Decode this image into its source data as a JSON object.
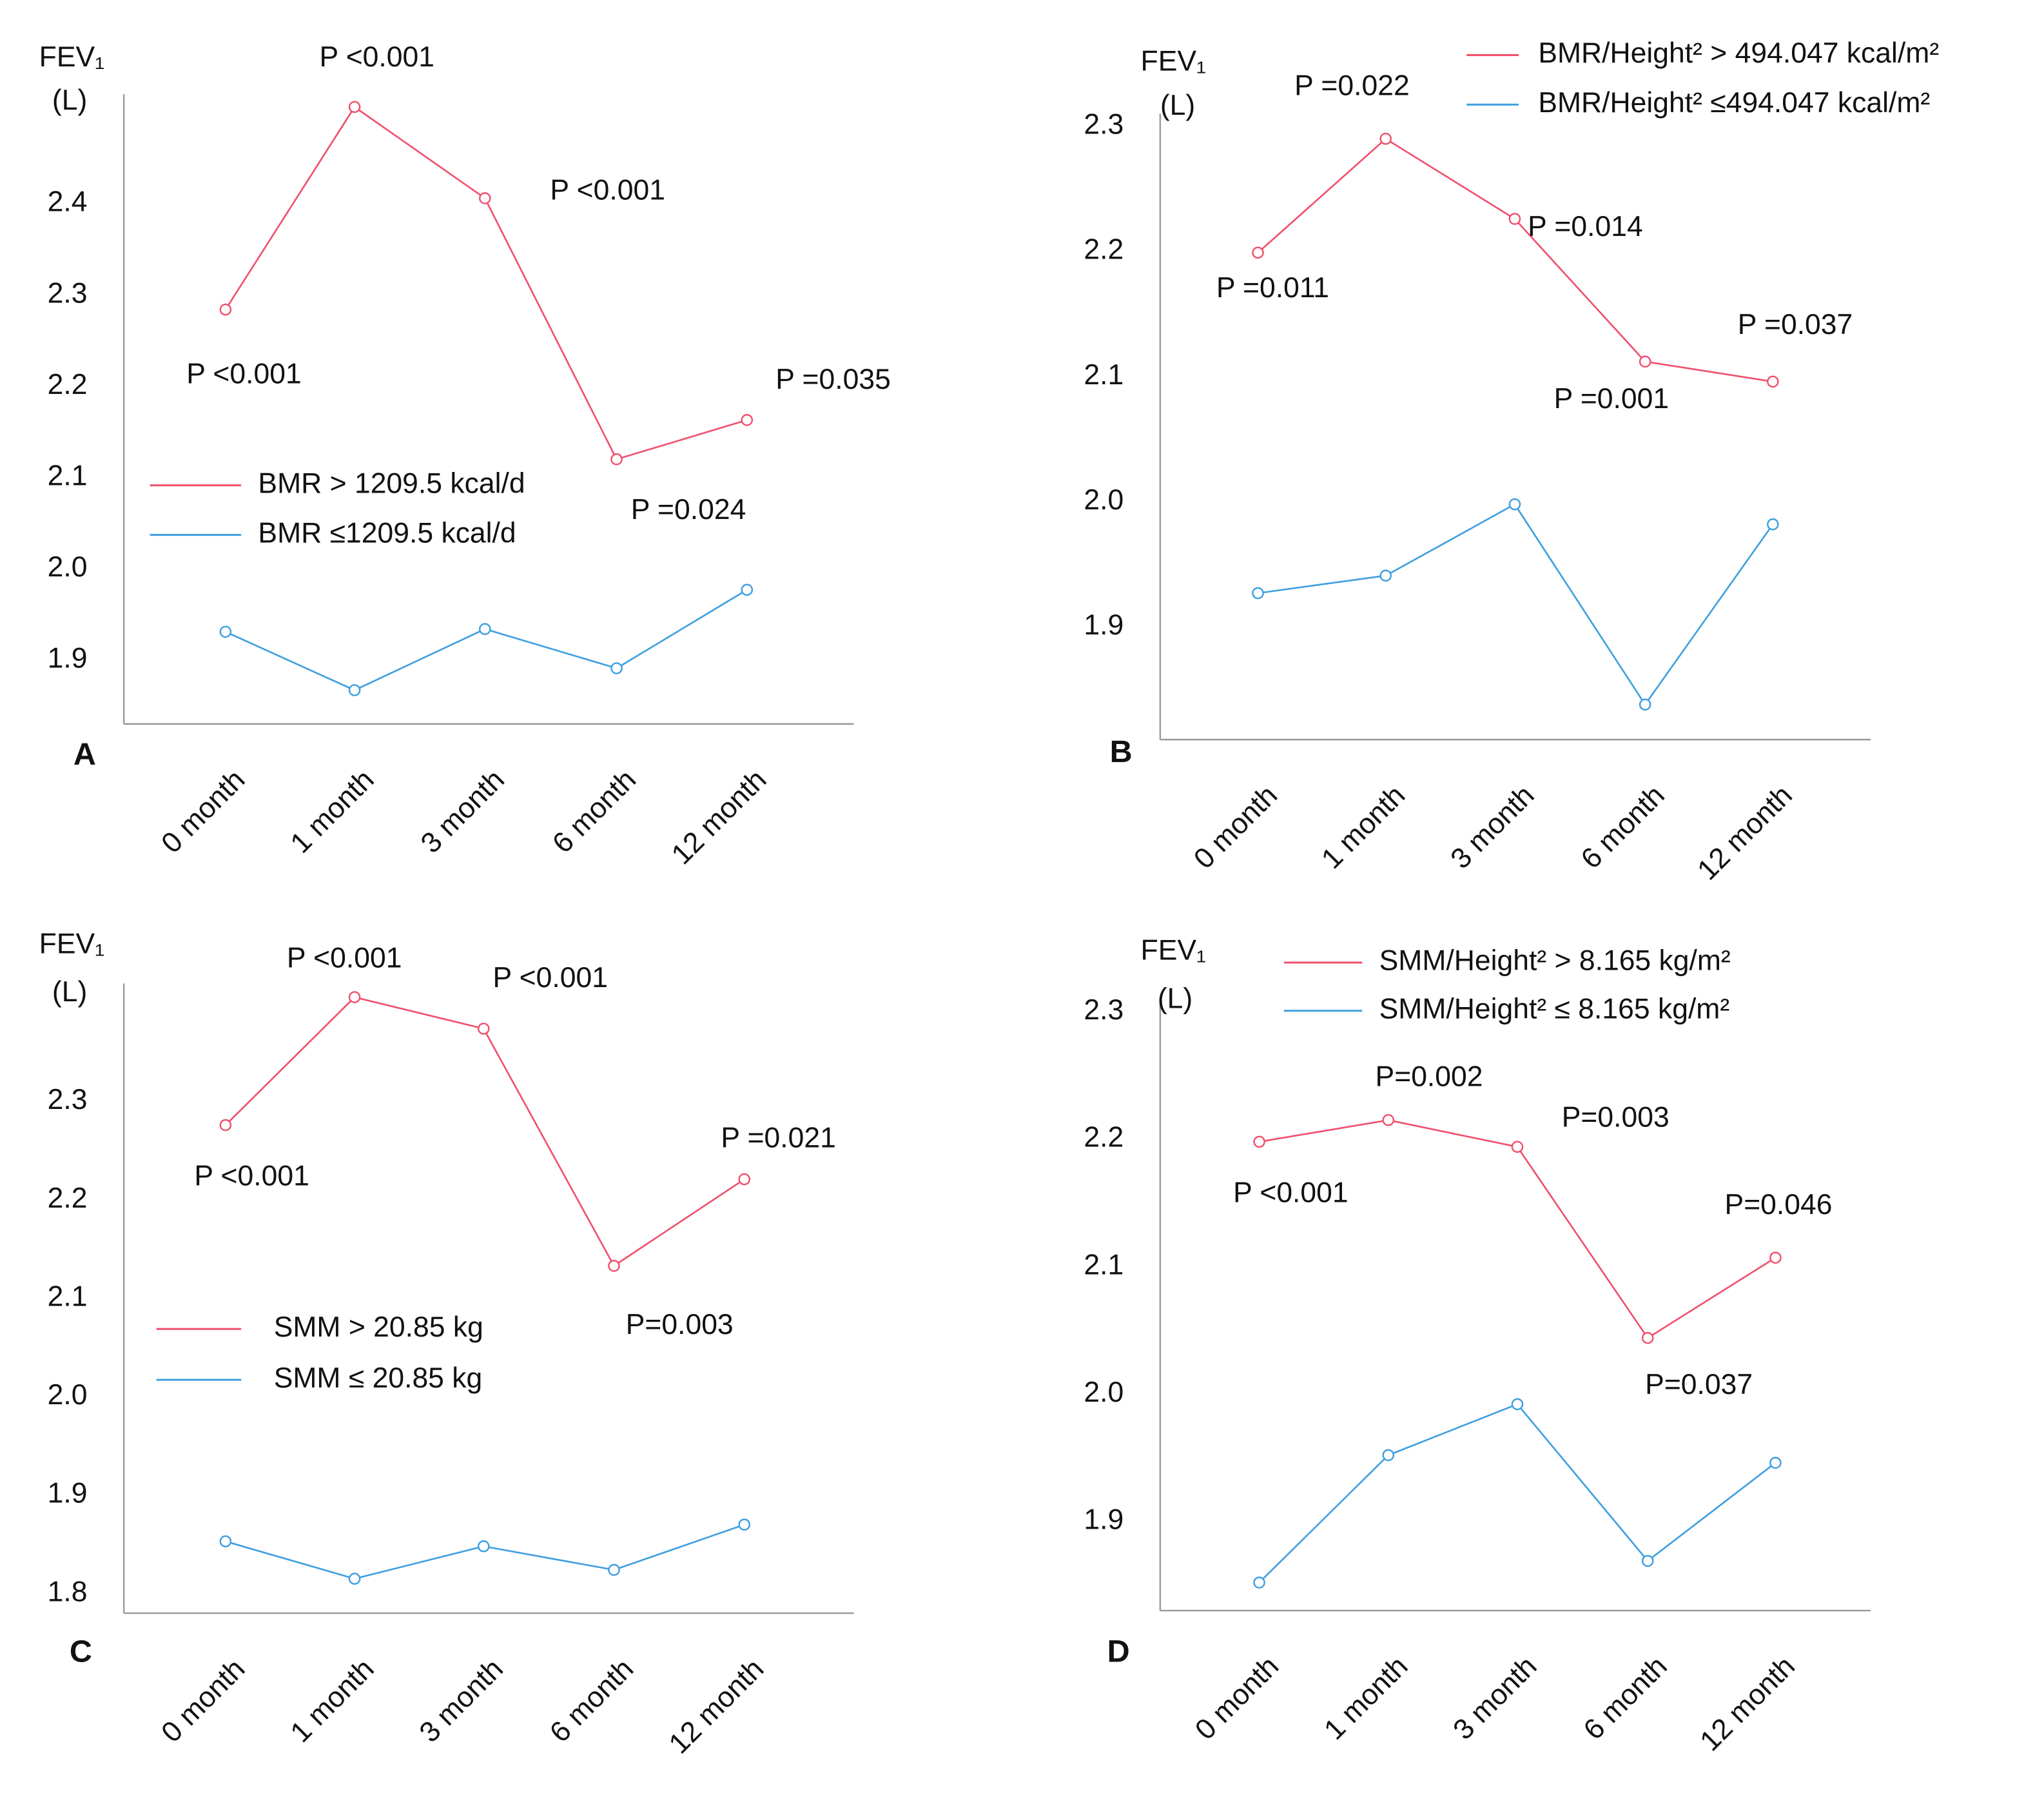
{
  "chart_data": [
    {
      "type": "line",
      "panel": "A",
      "y_label": "FEV₁",
      "y_unit": "(L)",
      "categories": [
        "0 month",
        "1 month",
        "3 month",
        "6 month",
        "12 month"
      ],
      "series": [
        {
          "name": "BMR > 1209.5 kcal/d",
          "color": "#f0506e",
          "values": [
            2.284,
            2.506,
            2.406,
            2.12,
            2.163
          ]
        },
        {
          "name": "BMR ≤1209.5 kcal/d",
          "color": "#3f9fe0",
          "values": [
            1.931,
            1.867,
            1.934,
            1.891,
            1.977
          ]
        }
      ],
      "ylim": [
        1.83,
        2.52
      ],
      "yticks": [
        1.9,
        {
          "value": 2,
          "label": "2.0"
        },
        2.1,
        2.2,
        2.3,
        2.4
      ],
      "annotations": [
        "P <0.001",
        "P <0.001",
        "P <0.001",
        "P =0.035",
        "P =0.024"
      ]
    },
    {
      "type": "line",
      "panel": "B",
      "y_label": "FEV₁",
      "y_unit": "(L)",
      "categories": [
        "0 month",
        "1 month",
        "3 month",
        "6 month",
        "12 month"
      ],
      "series": [
        {
          "name": "BMR/Height² > 494.047 kcal/m²",
          "color": "#f0506e",
          "values": [
            2.199,
            2.29,
            2.226,
            2.112,
            2.096
          ]
        },
        {
          "name": "BMR/Height² ≤494.047 kcal/m²",
          "color": "#3f9fe0",
          "values": [
            1.927,
            1.941,
            1.998,
            1.838,
            1.982
          ]
        }
      ],
      "ylim": [
        1.81,
        2.31
      ],
      "yticks": [
        1.9,
        {
          "value": 2,
          "label": "2.0"
        },
        2.1,
        2.2,
        2.3
      ],
      "annotations": [
        "P =0.022",
        "P =0.011",
        "P =0.014",
        "P =0.001",
        "P =0.037"
      ]
    },
    {
      "type": "line",
      "panel": "C",
      "y_label": "FEV₁",
      "y_unit": "(L)",
      "categories": [
        "0 month",
        "1 month",
        "3 month",
        "6 month",
        "12 month"
      ],
      "series": [
        {
          "name": "SMM > 20.85 kg",
          "color": "#f0506e",
          "values": [
            2.276,
            2.406,
            2.374,
            2.133,
            2.221
          ]
        },
        {
          "name": "SMM ≤ 20.85 kg",
          "color": "#3f9fe0",
          "values": [
            1.853,
            1.815,
            1.848,
            1.824,
            1.87
          ]
        }
      ],
      "ylim": [
        1.78,
        2.42
      ],
      "yticks": [
        1.8,
        1.9,
        {
          "value": 2,
          "label": "2.0"
        },
        2.1,
        2.2,
        2.3
      ],
      "annotations": [
        "P <0.001",
        "P <0.001",
        "P <0.001",
        "P =0.021",
        "P=0.003"
      ]
    },
    {
      "type": "line",
      "panel": "D",
      "y_label": "FEV₁",
      "y_unit": "(L)",
      "categories": [
        "0 month",
        "1 month",
        "3 month",
        "6 month",
        "12 month"
      ],
      "series": [
        {
          "name": "SMM/Height² > 8.165 kg/m²",
          "color": "#f0506e",
          "values": [
            2.198,
            2.215,
            2.194,
            2.044,
            2.107
          ]
        },
        {
          "name": "SMM/Height² ≤ 8.165 kg/m²",
          "color": "#3f9fe0",
          "values": [
            1.852,
            1.952,
            1.992,
            1.869,
            1.946
          ]
        }
      ],
      "ylim": [
        1.83,
        2.31
      ],
      "yticks": [
        1.9,
        {
          "value": 2,
          "label": "2.0"
        },
        2.1,
        2.2,
        2.3
      ],
      "annotations": [
        "P=0.002",
        "P=0.003",
        "P <0.001",
        "P=0.046",
        "P=0.037"
      ]
    }
  ]
}
